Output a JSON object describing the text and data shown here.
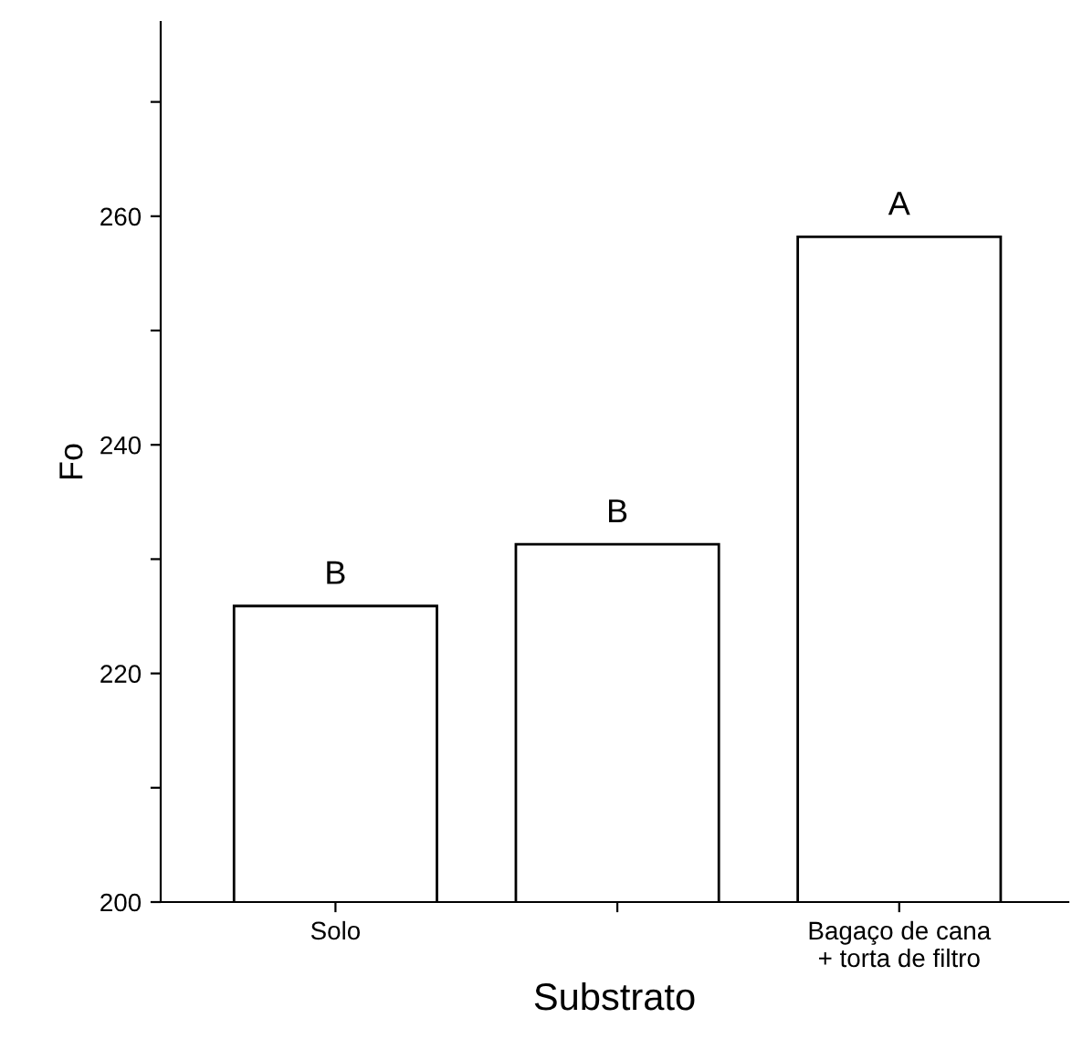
{
  "chart_data": {
    "type": "bar",
    "xlabel": "Substrato",
    "ylabel": "Fo",
    "categories": [
      "Solo",
      null,
      "Bagaço de cana\n+ torta de filtro"
    ],
    "values": [
      225.9,
      231.3,
      258.2
    ],
    "value_labels": [
      "B",
      "B",
      "A"
    ],
    "color": "#ffffff",
    "ylim": [
      200,
      277
    ],
    "yticks": [
      200,
      {
        "value": 210,
        "label": null
      },
      220,
      {
        "value": 230,
        "label": null
      },
      240,
      {
        "value": 250,
        "label": null
      },
      260,
      {
        "value": 270,
        "label": null
      }
    ],
    "grid": false,
    "legend": false
  }
}
